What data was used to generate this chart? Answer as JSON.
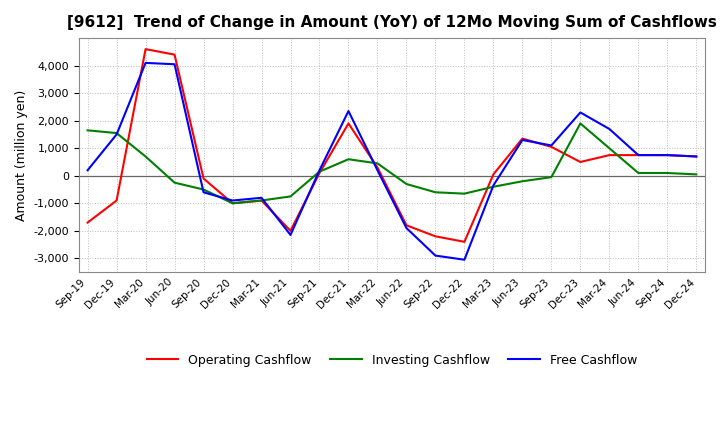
{
  "title": "[9612]  Trend of Change in Amount (YoY) of 12Mo Moving Sum of Cashflows",
  "ylabel": "Amount (million yen)",
  "x_labels": [
    "Sep-19",
    "Dec-19",
    "Mar-20",
    "Jun-20",
    "Sep-20",
    "Dec-20",
    "Mar-21",
    "Jun-21",
    "Sep-21",
    "Dec-21",
    "Mar-22",
    "Jun-22",
    "Sep-22",
    "Dec-22",
    "Mar-23",
    "Jun-23",
    "Sep-23",
    "Dec-23",
    "Mar-24",
    "Jun-24",
    "Sep-24",
    "Dec-24"
  ],
  "operating": [
    -1700,
    -900,
    4600,
    4400,
    -100,
    -1000,
    -900,
    -2000,
    100,
    1900,
    300,
    -1800,
    -2200,
    -2400,
    50,
    1350,
    1050,
    500,
    750,
    750,
    750,
    700
  ],
  "investing": [
    1650,
    1550,
    700,
    -250,
    -500,
    -1000,
    -900,
    -750,
    150,
    600,
    450,
    -300,
    -600,
    -650,
    -400,
    -200,
    -50,
    1900,
    1000,
    100,
    100,
    50
  ],
  "free": [
    200,
    1500,
    4100,
    4050,
    -600,
    -900,
    -800,
    -2150,
    200,
    2350,
    200,
    -1900,
    -2900,
    -3050,
    -350,
    1300,
    1100,
    2300,
    1700,
    750,
    750,
    700
  ],
  "operating_color": "#ff0000",
  "investing_color": "#008000",
  "free_color": "#0000ff",
  "ylim": [
    -3500,
    5000
  ],
  "yticks": [
    -3000,
    -2000,
    -1000,
    0,
    1000,
    2000,
    3000,
    4000
  ],
  "background_color": "#ffffff",
  "grid_color": "#bbbbbb"
}
